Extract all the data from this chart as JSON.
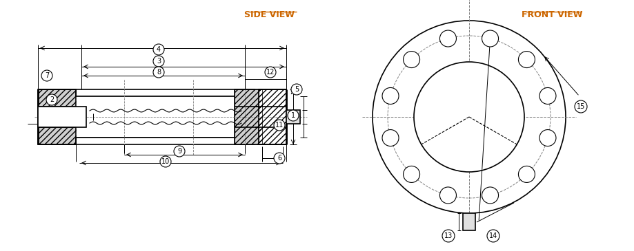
{
  "bg_color": "#ffffff",
  "line_color": "#000000",
  "label_color": "#000000",
  "side_view_label_color": "#cc6600",
  "front_view_label_color": "#cc6600",
  "side_view_text": "SIDE VIEW",
  "front_view_text": "FRONT VIEW",
  "figsize": [
    9.19,
    3.65
  ],
  "dpi": 100
}
